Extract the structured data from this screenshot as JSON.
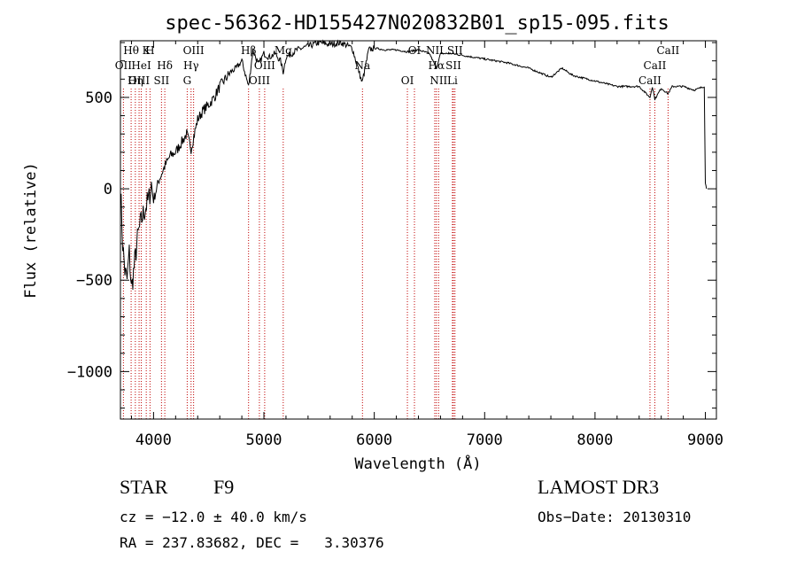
{
  "chart_data": {
    "type": "line",
    "title": "spec-56362-HD155427N020832B01_sp15-095.fits",
    "xlabel": "Wavelength (Å)",
    "ylabel": "Flux (relative)",
    "xlim": [
      3700,
      9100
    ],
    "ylim": [
      -1260,
      810
    ],
    "x_ticks": [
      4000,
      5000,
      6000,
      7000,
      8000,
      9000
    ],
    "y_ticks": [
      -1000,
      -500,
      0,
      500
    ],
    "series": [
      {
        "name": "flux",
        "x": [
          3700,
          3720,
          3740,
          3760,
          3780,
          3800,
          3830,
          3860,
          3880,
          3900,
          3930,
          3960,
          3980,
          4000,
          4050,
          4100,
          4150,
          4200,
          4250,
          4300,
          4340,
          4400,
          4450,
          4500,
          4550,
          4600,
          4650,
          4700,
          4750,
          4800,
          4861,
          4900,
          4950,
          5000,
          5050,
          5100,
          5150,
          5175,
          5200,
          5300,
          5400,
          5500,
          5600,
          5700,
          5800,
          5890,
          5950,
          6000,
          6100,
          6200,
          6300,
          6400,
          6500,
          6563,
          6600,
          6700,
          6800,
          6900,
          7000,
          7200,
          7400,
          7600,
          7700,
          7800,
          8000,
          8200,
          8400,
          8498,
          8520,
          8542,
          8600,
          8662,
          8700,
          8800,
          8900,
          8990,
          9000,
          9010
        ],
        "y": [
          20,
          -300,
          -450,
          -500,
          -350,
          -550,
          -400,
          -250,
          -200,
          -150,
          -100,
          -50,
          30,
          -60,
          50,
          120,
          180,
          200,
          250,
          300,
          220,
          380,
          430,
          460,
          500,
          560,
          600,
          640,
          660,
          700,
          560,
          760,
          680,
          740,
          720,
          740,
          700,
          640,
          720,
          760,
          780,
          800,
          790,
          800,
          770,
          580,
          760,
          770,
          760,
          760,
          750,
          760,
          740,
          660,
          740,
          740,
          730,
          720,
          710,
          690,
          660,
          610,
          660,
          620,
          590,
          560,
          560,
          500,
          560,
          490,
          550,
          520,
          560,
          560,
          540,
          560,
          30,
          0
        ]
      }
    ],
    "line_markers": [
      {
        "label": "Hθ",
        "x": 3797
      },
      {
        "label": "OII",
        "x": 3727
      },
      {
        "label": "OIII",
        "x": 3869
      },
      {
        "label": "K",
        "x": 3934
      },
      {
        "label": "HeI",
        "x": 3889
      },
      {
        "label": "Hη",
        "x": 3835
      },
      {
        "label": "H",
        "x": 3968
      },
      {
        "label": "Hδ",
        "x": 4102
      },
      {
        "label": "SII",
        "x": 4072
      },
      {
        "label": "OIII",
        "x": 4363
      },
      {
        "label": "Hγ",
        "x": 4340
      },
      {
        "label": "G",
        "x": 4305
      },
      {
        "label": "Hβ",
        "x": 4861
      },
      {
        "label": "OIII",
        "x": 5007
      },
      {
        "label": "OIII",
        "x": 4959
      },
      {
        "label": "Mg",
        "x": 5175
      },
      {
        "label": "Na",
        "x": 5893
      },
      {
        "label": "OI",
        "x": 6300
      },
      {
        "label": "OI",
        "x": 6364
      },
      {
        "label": "Hα",
        "x": 6563
      },
      {
        "label": "NII",
        "x": 6583
      },
      {
        "label": "NII",
        "x": 6548
      },
      {
        "label": "SII",
        "x": 6717
      },
      {
        "label": "Li",
        "x": 6708
      },
      {
        "label": "SII",
        "x": 6731
      },
      {
        "label": "CaII",
        "x": 8542
      },
      {
        "label": "CaII",
        "x": 8498
      },
      {
        "label": "CaII",
        "x": 8662
      }
    ]
  },
  "info": {
    "object": "STAR",
    "subclass": "F9",
    "survey": "LAMOST DR3",
    "cz": "cz = −12.0 ± 40.0 km/s",
    "obs_date": "Obs−Date: 20130310",
    "coords": "RA = 237.83682, DEC =   3.30376"
  }
}
